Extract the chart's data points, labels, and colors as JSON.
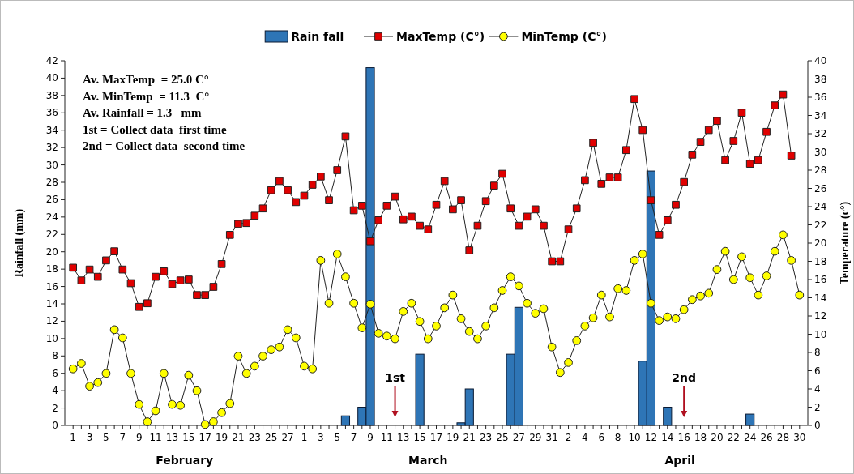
{
  "chart_data": {
    "type": "line",
    "ylabel": "Rainfall (mm)",
    "y2label": "Temperature (c°)",
    "legend": "top",
    "x": [
      "--02-01",
      "--02-02",
      "--02-03",
      "--02-04",
      "--02-05",
      "--02-06",
      "--02-07",
      "--02-08",
      "--02-09",
      "--02-10",
      "--02-11",
      "--02-12",
      "--02-13",
      "--02-14",
      "--02-15",
      "--02-16",
      "--02-17",
      "--02-18",
      "--02-19",
      "--02-20",
      "--02-21",
      "--02-22",
      "--02-23",
      "--02-24",
      "--02-25",
      "--02-26",
      "--02-27",
      "--02-28",
      "--03-01",
      "--03-02",
      "--03-03",
      "--03-04",
      "--03-05",
      "--03-06",
      "--03-07",
      "--03-08",
      "--03-09",
      "--03-10",
      "--03-11",
      "--03-12",
      "--03-13",
      "--03-14",
      "--03-15",
      "--03-16",
      "--03-17",
      "--03-18",
      "--03-19",
      "--03-20",
      "--03-21",
      "--03-22",
      "--03-23",
      "--03-24",
      "--03-25",
      "--03-26",
      "--03-27",
      "--03-28",
      "--03-29",
      "--03-30",
      "--03-31",
      "--04-01",
      "--04-02",
      "--04-03",
      "--04-04",
      "--04-05",
      "--04-06",
      "--04-07",
      "--04-08",
      "--04-09",
      "--04-10",
      "--04-11",
      "--04-12",
      "--04-13",
      "--04-14",
      "--04-15",
      "--04-16",
      "--04-17",
      "--04-18",
      "--04-19",
      "--04-20",
      "--04-21",
      "--04-22",
      "--04-23",
      "--04-24",
      "--04-25",
      "--04-26",
      "--04-27",
      "--04-28",
      "--04-29",
      "--04-30"
    ],
    "xlim": [
      "--01-31",
      "--05-01"
    ],
    "xticks": [
      {
        "value": "--02-01",
        "label": "1"
      },
      {
        "value": "--02-02",
        "label": null
      },
      {
        "value": "--02-03",
        "label": "3"
      },
      {
        "value": "--02-04",
        "label": null
      },
      {
        "value": "--02-05",
        "label": "5"
      },
      {
        "value": "--02-06",
        "label": null
      },
      {
        "value": "--02-07",
        "label": "7"
      },
      {
        "value": "--02-08",
        "label": null
      },
      {
        "value": "--02-09",
        "label": "9"
      },
      {
        "value": "--02-10",
        "label": null
      },
      {
        "value": "--02-11",
        "label": "11"
      },
      {
        "value": "--02-12",
        "label": null
      },
      {
        "value": "--02-13",
        "label": "13"
      },
      {
        "value": "--02-14",
        "label": null
      },
      {
        "value": "--02-15",
        "label": "15"
      },
      {
        "value": "--02-16",
        "label": null
      },
      {
        "value": "--02-17",
        "label": "17"
      },
      {
        "value": "--02-18",
        "label": null
      },
      {
        "value": "--02-19",
        "label": "19"
      },
      {
        "value": "--02-20",
        "label": null
      },
      {
        "value": "--02-21",
        "label": "21"
      },
      {
        "value": "--02-22",
        "label": null
      },
      {
        "value": "--02-23",
        "label": "23"
      },
      {
        "value": "--02-24",
        "label": null
      },
      {
        "value": "--02-25",
        "label": "25"
      },
      {
        "value": "--02-26",
        "label": null
      },
      {
        "value": "--02-27",
        "label": "27"
      },
      {
        "value": "--02-28",
        "label": null
      },
      {
        "value": "--03-01",
        "label": "1"
      },
      {
        "value": "--03-02",
        "label": null
      },
      {
        "value": "--03-03",
        "label": "3"
      },
      {
        "value": "--03-04",
        "label": null
      },
      {
        "value": "--03-05",
        "label": "5"
      },
      {
        "value": "--03-06",
        "label": null
      },
      {
        "value": "--03-07",
        "label": "7"
      },
      {
        "value": "--03-08",
        "label": null
      },
      {
        "value": "--03-09",
        "label": "9"
      },
      {
        "value": "--03-10",
        "label": null
      },
      {
        "value": "--03-11",
        "label": "11"
      },
      {
        "value": "--03-12",
        "label": null
      },
      {
        "value": "--03-13",
        "label": "13"
      },
      {
        "value": "--03-14",
        "label": null
      },
      {
        "value": "--03-15",
        "label": "15"
      },
      {
        "value": "--03-16",
        "label": null
      },
      {
        "value": "--03-17",
        "label": "17"
      },
      {
        "value": "--03-18",
        "label": null
      },
      {
        "value": "--03-19",
        "label": "19"
      },
      {
        "value": "--03-20",
        "label": null
      },
      {
        "value": "--03-21",
        "label": "21"
      },
      {
        "value": "--03-22",
        "label": null
      },
      {
        "value": "--03-23",
        "label": "23"
      },
      {
        "value": "--03-24",
        "label": null
      },
      {
        "value": "--03-25",
        "label": "25"
      },
      {
        "value": "--03-26",
        "label": null
      },
      {
        "value": "--03-27",
        "label": "27"
      },
      {
        "value": "--03-28",
        "label": null
      },
      {
        "value": "--03-29",
        "label": "29"
      },
      {
        "value": "--03-30",
        "label": null
      },
      {
        "value": "--03-31",
        "label": "31"
      },
      {
        "value": "--04-01",
        "label": null
      },
      {
        "value": "--04-02",
        "label": "2"
      },
      {
        "value": "--04-03",
        "label": null
      },
      {
        "value": "--04-04",
        "label": "4"
      },
      {
        "value": "--04-05",
        "label": null
      },
      {
        "value": "--04-06",
        "label": "6"
      },
      {
        "value": "--04-07",
        "label": null
      },
      {
        "value": "--04-08",
        "label": "8"
      },
      {
        "value": "--04-09",
        "label": null
      },
      {
        "value": "--04-10",
        "label": "10"
      },
      {
        "value": "--04-11",
        "label": null
      },
      {
        "value": "--04-12",
        "label": "12"
      },
      {
        "value": "--04-13",
        "label": null
      },
      {
        "value": "--04-14",
        "label": "14"
      },
      {
        "value": "--04-15",
        "label": null
      },
      {
        "value": "--04-16",
        "label": "16"
      },
      {
        "value": "--04-17",
        "label": null
      },
      {
        "value": "--04-18",
        "label": "18"
      },
      {
        "value": "--04-19",
        "label": null
      },
      {
        "value": "--04-20",
        "label": "20"
      },
      {
        "value": "--04-21",
        "label": null
      },
      {
        "value": "--04-22",
        "label": "22"
      },
      {
        "value": "--04-23",
        "label": null
      },
      {
        "value": "--04-24",
        "label": "24"
      },
      {
        "value": "--04-25",
        "label": null
      },
      {
        "value": "--04-26",
        "label": "26"
      },
      {
        "value": "--04-27",
        "label": null
      },
      {
        "value": "--04-28",
        "label": "28"
      },
      {
        "value": "--04-29",
        "label": null
      },
      {
        "value": "--04-30",
        "label": "30"
      }
    ],
    "ylim": [
      0,
      42
    ],
    "yticks": [
      0,
      2,
      4,
      6,
      8,
      10,
      12,
      14,
      16,
      18,
      20,
      22,
      24,
      26,
      28,
      30,
      32,
      34,
      36,
      38,
      40,
      42
    ],
    "y2lim": [
      0,
      40
    ],
    "y2ticks": [
      0,
      2,
      4,
      6,
      8,
      10,
      12,
      14,
      16,
      18,
      20,
      22,
      24,
      26,
      28,
      30,
      32,
      34,
      36,
      38,
      40
    ],
    "series": [
      {
        "name": "Rain fall",
        "type": "bar",
        "color": "#2e75b6",
        "x": [
          "--03-06",
          "--03-08",
          "--03-09",
          "--03-15",
          "--03-20",
          "--03-21",
          "--03-26",
          "--03-27",
          "--04-11",
          "--04-12",
          "--04-14",
          "--04-24"
        ],
        "values": [
          1.1,
          2.1,
          41.2,
          8.2,
          0.3,
          4.2,
          8.2,
          13.6,
          7.4,
          29.3,
          2.1,
          1.3
        ]
      },
      {
        "name": "MaxTemp (C°)",
        "axis": "y2",
        "marker": "square",
        "color": "#e00000",
        "values": [
          17.3,
          15.9,
          17.1,
          16.3,
          18.1,
          19.1,
          17.1,
          15.6,
          13.0,
          13.4,
          16.3,
          16.9,
          15.5,
          15.9,
          16.0,
          14.3,
          14.3,
          15.2,
          17.7,
          20.9,
          22.1,
          22.2,
          23.0,
          23.8,
          25.8,
          26.8,
          25.8,
          24.5,
          25.2,
          26.4,
          27.3,
          24.7,
          28.0,
          31.7,
          23.6,
          24.1,
          20.2,
          22.5,
          24.1,
          25.1,
          22.6,
          22.9,
          21.9,
          21.5,
          24.2,
          26.8,
          23.7,
          24.7,
          19.2,
          21.9,
          24.6,
          26.3,
          27.6,
          23.8,
          21.9,
          22.9,
          23.7,
          21.9,
          18.0,
          18.0,
          21.5,
          23.8,
          26.9,
          31.0,
          26.5,
          27.2,
          27.2,
          30.2,
          35.8,
          32.4,
          24.7,
          20.9,
          22.5,
          24.2,
          26.7,
          29.7,
          31.1,
          32.4,
          33.4,
          29.1,
          31.2,
          34.3,
          28.7,
          29.1,
          32.2,
          35.1,
          36.3,
          29.6,
          null
        ]
      },
      {
        "name": "MinTemp (C°)",
        "axis": "y2",
        "marker": "circle",
        "color": "#ffff00",
        "values": [
          6.2,
          6.8,
          4.3,
          4.7,
          5.7,
          10.5,
          9.6,
          5.7,
          2.3,
          0.4,
          1.6,
          5.7,
          2.3,
          2.2,
          5.5,
          3.8,
          0.1,
          0.4,
          1.4,
          2.4,
          7.6,
          5.7,
          6.5,
          7.6,
          8.3,
          8.6,
          10.5,
          9.6,
          6.5,
          6.2,
          18.1,
          13.4,
          18.8,
          16.3,
          13.4,
          10.7,
          13.3,
          10.1,
          9.8,
          9.5,
          12.5,
          13.4,
          11.4,
          9.5,
          10.9,
          12.9,
          14.3,
          11.7,
          10.3,
          9.5,
          10.9,
          12.9,
          14.8,
          16.3,
          15.3,
          13.4,
          12.3,
          12.8,
          8.6,
          5.8,
          6.9,
          9.3,
          10.9,
          11.8,
          14.3,
          11.9,
          15.0,
          14.8,
          18.1,
          18.8,
          13.4,
          11.5,
          11.9,
          11.7,
          12.7,
          13.8,
          14.2,
          14.5,
          17.1,
          19.1,
          16.0,
          18.5,
          16.2,
          14.3,
          16.4,
          19.1,
          20.9,
          18.1,
          14.3
        ]
      }
    ],
    "annotations": [
      "Av. MaxTemp  = 25.0 C°",
      "Av. MinTemp  = 11.3  C°",
      "Av. Rainfall = 1.3   mm",
      "1st = Collect data  first time",
      "2nd = Collect data  second time",
      "February",
      "March",
      "April"
    ],
    "ref_lines": [
      {
        "axis": "x",
        "value": "--03-12",
        "label": "1st",
        "color": "#b01020"
      },
      {
        "axis": "x",
        "value": "--04-16",
        "label": "2nd",
        "color": "#b01020"
      }
    ]
  }
}
